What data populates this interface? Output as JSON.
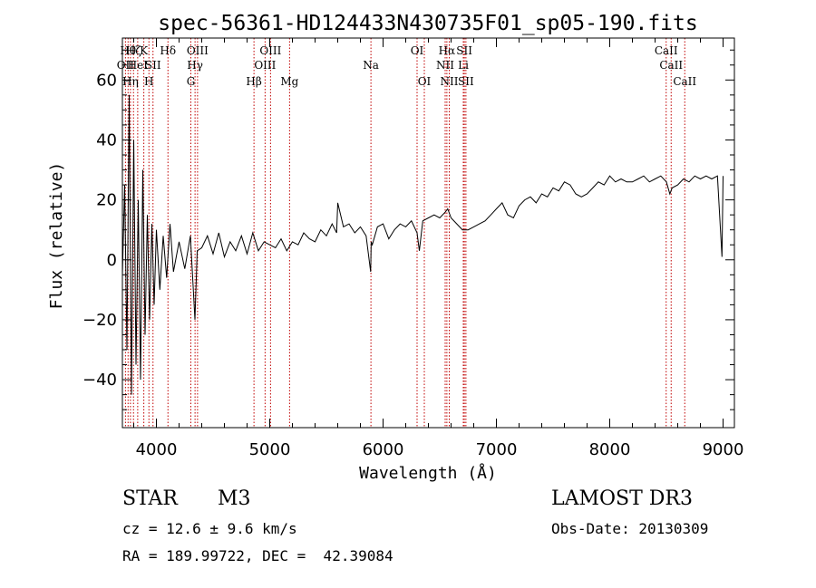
{
  "chart_data": {
    "type": "line",
    "title": "spec-56361-HD124433N430735F01_sp05-190.fits",
    "xlabel": "Wavelength (Å)",
    "ylabel": "Flux (relative)",
    "xlim": [
      3700,
      9100
    ],
    "ylim": [
      -56,
      74
    ],
    "xticks": [
      4000,
      5000,
      6000,
      7000,
      8000,
      9000
    ],
    "yticks": [
      -40,
      -20,
      0,
      20,
      40,
      60
    ],
    "series": [
      {
        "name": "spectrum",
        "x": [
          3700,
          3720,
          3740,
          3760,
          3780,
          3800,
          3820,
          3840,
          3860,
          3880,
          3900,
          3920,
          3940,
          3960,
          3980,
          4000,
          4030,
          4060,
          4090,
          4120,
          4150,
          4200,
          4250,
          4300,
          4340,
          4360,
          4400,
          4450,
          4500,
          4550,
          4600,
          4650,
          4700,
          4750,
          4800,
          4850,
          4900,
          4950,
          5000,
          5050,
          5100,
          5150,
          5200,
          5250,
          5300,
          5350,
          5400,
          5450,
          5500,
          5550,
          5590,
          5600,
          5650,
          5700,
          5750,
          5800,
          5850,
          5890,
          5895,
          5905,
          5950,
          6000,
          6050,
          6100,
          6150,
          6200,
          6250,
          6300,
          6320,
          6350,
          6400,
          6450,
          6500,
          6550,
          6570,
          6600,
          6650,
          6700,
          6750,
          6800,
          6850,
          6900,
          6950,
          7000,
          7050,
          7100,
          7150,
          7200,
          7250,
          7300,
          7350,
          7400,
          7450,
          7500,
          7550,
          7600,
          7650,
          7700,
          7750,
          7800,
          7850,
          7900,
          7950,
          8000,
          8050,
          8100,
          8150,
          8200,
          8250,
          8300,
          8350,
          8400,
          8450,
          8500,
          8530,
          8550,
          8600,
          8650,
          8700,
          8750,
          8800,
          8850,
          8900,
          8950,
          8990,
          9000
        ],
        "y": [
          -5,
          25,
          -30,
          55,
          -45,
          40,
          -35,
          20,
          -40,
          30,
          -25,
          15,
          -20,
          12,
          -15,
          10,
          -10,
          8,
          -6,
          12,
          -4,
          6,
          -3,
          8,
          -20,
          3,
          4,
          8,
          2,
          9,
          1,
          6,
          3,
          8,
          2,
          9,
          3,
          6,
          5,
          4,
          7,
          3,
          6,
          5,
          9,
          7,
          6,
          10,
          8,
          12,
          9,
          19,
          11,
          12,
          9,
          11,
          8,
          -4,
          6,
          5,
          11,
          12,
          7,
          10,
          12,
          11,
          13,
          9,
          3,
          13,
          14,
          15,
          14,
          16,
          17,
          14,
          12,
          10,
          10,
          11,
          12,
          13,
          15,
          17,
          19,
          15,
          14,
          18,
          20,
          21,
          19,
          22,
          21,
          24,
          23,
          26,
          25,
          22,
          21,
          22,
          24,
          26,
          25,
          28,
          26,
          27,
          26,
          26,
          27,
          28,
          26,
          27,
          28,
          26,
          22,
          24,
          25,
          27,
          26,
          28,
          27,
          28,
          27,
          28,
          1,
          28
        ]
      }
    ],
    "lines": [
      {
        "wave": 3727,
        "label": "OII",
        "tier": 1
      },
      {
        "wave": 3750,
        "label": "Hθ",
        "tier": 0
      },
      {
        "wave": 3771,
        "label": "Hη",
        "tier": 2
      },
      {
        "wave": 3798,
        "label": "Hζ",
        "tier": 0
      },
      {
        "wave": 3835,
        "label": "HeI",
        "tier": 1
      },
      {
        "wave": 3889,
        "label": "K",
        "tier": 0
      },
      {
        "wave": 3934,
        "label": "H",
        "tier": 2
      },
      {
        "wave": 3970,
        "label": "SII",
        "tier": 1
      },
      {
        "wave": 4102,
        "label": "Hδ",
        "tier": 0
      },
      {
        "wave": 4304,
        "label": "G",
        "tier": 2
      },
      {
        "wave": 4341,
        "label": "Hγ",
        "tier": 1
      },
      {
        "wave": 4363,
        "label": "OIII",
        "tier": 0
      },
      {
        "wave": 4861,
        "label": "Hβ",
        "tier": 2
      },
      {
        "wave": 4959,
        "label": "OIII",
        "tier": 1
      },
      {
        "wave": 5007,
        "label": "OIII",
        "tier": 0
      },
      {
        "wave": 5175,
        "label": "Mg",
        "tier": 2
      },
      {
        "wave": 5893,
        "label": "Na",
        "tier": 1
      },
      {
        "wave": 6300,
        "label": "OI",
        "tier": 0
      },
      {
        "wave": 6364,
        "label": "OI",
        "tier": 2
      },
      {
        "wave": 6548,
        "label": "NII",
        "tier": 1
      },
      {
        "wave": 6563,
        "label": "Hα",
        "tier": 0
      },
      {
        "wave": 6584,
        "label": "NII",
        "tier": 2
      },
      {
        "wave": 6708,
        "label": "Li",
        "tier": 1
      },
      {
        "wave": 6717,
        "label": "SII",
        "tier": 0
      },
      {
        "wave": 6731,
        "label": "SII",
        "tier": 2
      },
      {
        "wave": 8498,
        "label": "CaII",
        "tier": 0
      },
      {
        "wave": 8542,
        "label": "CaII",
        "tier": 1
      },
      {
        "wave": 8662,
        "label": "CaII",
        "tier": 2
      }
    ]
  },
  "info": {
    "object_class": "STAR",
    "subclass": "M3",
    "survey": "LAMOST DR3",
    "cz": "cz = 12.6 ± 9.6 km/s",
    "obs_date": "Obs-Date: 20130309",
    "coords": "RA = 189.99722, DEC =  42.39084"
  }
}
